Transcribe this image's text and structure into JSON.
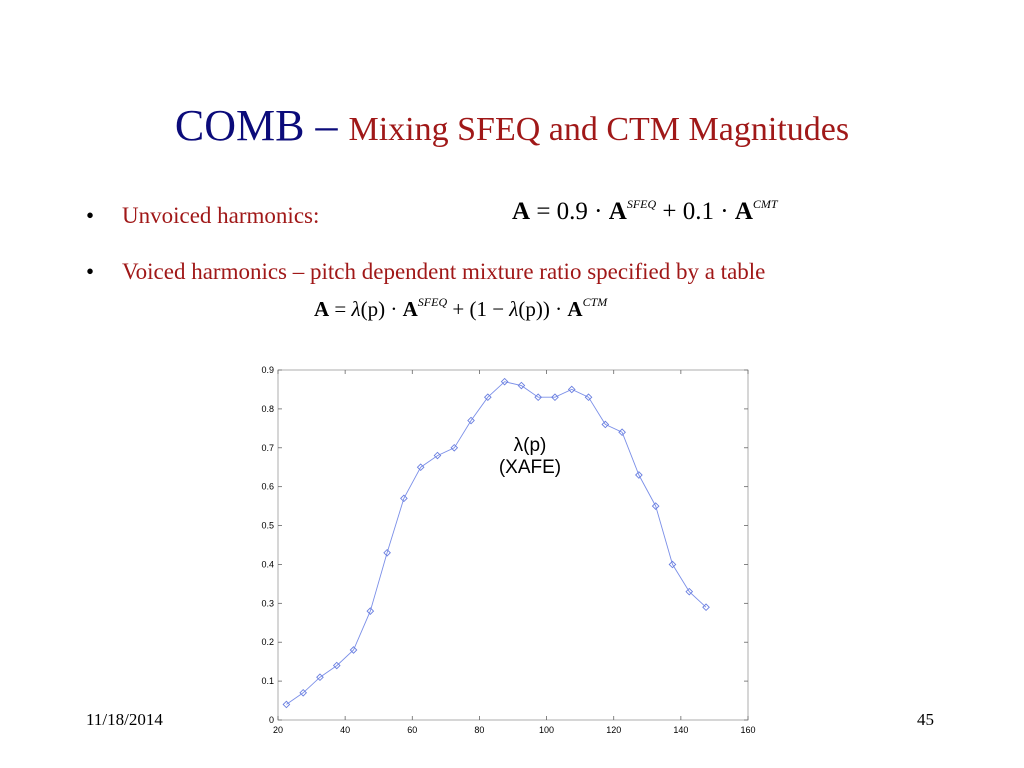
{
  "slide": {
    "title_main": "COMB",
    "title_dash": " – ",
    "title_sub": "Mixing SFEQ and CTM Magnitudes",
    "bullets": [
      {
        "marker": "•",
        "text": "Unvoiced harmonics:"
      },
      {
        "marker": "•",
        "text": "Voiced harmonics – pitch dependent mixture ratio specified by a table"
      }
    ],
    "equation1": {
      "lhs": "A",
      "eq": " = 0.9 · ",
      "A1": "A",
      "sup1": "SFEQ",
      "mid": " + 0.1 · ",
      "A2": "A",
      "sup2": "CMT"
    },
    "equation2": {
      "lhs": "A",
      "eq": " = ",
      "lam1": "λ",
      "p1": "(p) · ",
      "A1": "A",
      "sup1": "SFEQ",
      "mid": " + (1 − ",
      "lam2": "λ",
      "p2": "(p)) · ",
      "A2": "A",
      "sup2": "CTM"
    },
    "annotation_line1": "λ(p)",
    "annotation_line2": "(XAFE)",
    "footer_date": "11/18/2014",
    "footer_page": "45"
  },
  "chart_data": {
    "type": "line",
    "title": "",
    "xlabel": "",
    "ylabel": "",
    "xlim": [
      20,
      160
    ],
    "ylim": [
      0,
      0.9
    ],
    "xticks": [
      20,
      40,
      60,
      80,
      100,
      120,
      140,
      160
    ],
    "yticks": [
      0,
      0.1,
      0.2,
      0.3,
      0.4,
      0.5,
      0.6,
      0.7,
      0.8,
      0.9
    ],
    "grid": false,
    "line_color": "#7b8fe8",
    "marker_color": "#6a7fe0",
    "series": [
      {
        "x": [
          22.5,
          27.5,
          32.5,
          37.5,
          42.5,
          47.5,
          52.5,
          57.5,
          62.5,
          67.5,
          72.5,
          77.5,
          82.5,
          87.5,
          92.5,
          97.5,
          102.5,
          107.5,
          112.5,
          117.5,
          122.5,
          127.5,
          132.5,
          137.5,
          142.5,
          147.5
        ],
        "y": [
          0.04,
          0.07,
          0.11,
          0.14,
          0.18,
          0.28,
          0.43,
          0.57,
          0.65,
          0.68,
          0.7,
          0.77,
          0.83,
          0.87,
          0.86,
          0.83,
          0.83,
          0.85,
          0.83,
          0.76,
          0.74,
          0.63,
          0.55,
          0.4,
          0.33,
          0.29
        ]
      }
    ]
  }
}
